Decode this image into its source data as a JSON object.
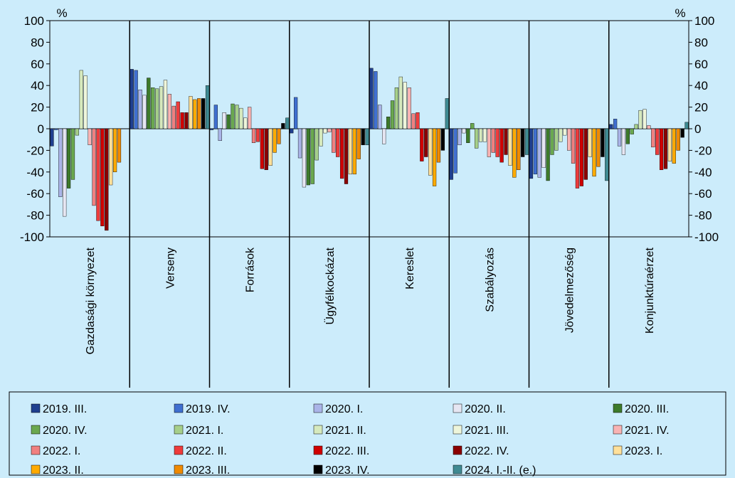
{
  "chart_data": {
    "type": "bar",
    "y_unit_left": "%",
    "y_unit_right": "%",
    "ylim": [
      -100,
      100
    ],
    "yticks": [
      100,
      80,
      60,
      40,
      20,
      0,
      -20,
      -40,
      -60,
      -80,
      -100
    ],
    "grid": false,
    "legend_position": "bottom",
    "categories": [
      "Gazdasági környezet",
      "Verseny",
      "Források",
      "Ügyfélkockázat",
      "Kereslet",
      "Szabályozás",
      "Jövedelmezőség",
      "Konjunktúraérzet"
    ],
    "series": [
      {
        "name": "2019. III.",
        "color": "#1f3f8f",
        "values": [
          -16,
          55,
          -1,
          -4,
          56,
          -47,
          -46,
          4
        ]
      },
      {
        "name": "2019. IV.",
        "color": "#3f6fd0",
        "values": [
          -1,
          54,
          22,
          29,
          53,
          -41,
          -42,
          9
        ]
      },
      {
        "name": "2020. I.",
        "color": "#aab4e8",
        "values": [
          -63,
          36,
          -11,
          -27,
          22,
          -15,
          -45,
          -16
        ]
      },
      {
        "name": "2020. II.",
        "color": "#e6e6f2",
        "values": [
          -81,
          31,
          15,
          -54,
          -14,
          -4,
          -36,
          -24
        ]
      },
      {
        "name": "2020. III.",
        "color": "#3d7a2a",
        "values": [
          -55,
          47,
          13,
          -52,
          11,
          -13,
          -48,
          -14
        ]
      },
      {
        "name": "2020. IV.",
        "color": "#6aa84f",
        "values": [
          -47,
          38,
          23,
          -51,
          26,
          5,
          -24,
          -5
        ]
      },
      {
        "name": "2021. I.",
        "color": "#a6cf8a",
        "values": [
          -6,
          37,
          22,
          -29,
          38,
          -18,
          -20,
          4
        ]
      },
      {
        "name": "2021. II.",
        "color": "#d6e9bd",
        "values": [
          54,
          39,
          19,
          -16,
          48,
          -12,
          -12,
          17
        ]
      },
      {
        "name": "2021. III.",
        "color": "#eef5da",
        "values": [
          49,
          45,
          10,
          -4,
          43,
          -12,
          -6,
          18
        ]
      },
      {
        "name": "2021. IV.",
        "color": "#f8b3b3",
        "values": [
          -15,
          32,
          20,
          -3,
          38,
          -26,
          -20,
          3
        ]
      },
      {
        "name": "2022. I.",
        "color": "#f08080",
        "values": [
          -71,
          21,
          -13,
          -22,
          14,
          -22,
          -32,
          -17
        ]
      },
      {
        "name": "2022. II.",
        "color": "#ee3b3b",
        "values": [
          -85,
          25,
          -12,
          -26,
          15,
          -26,
          -55,
          -24
        ]
      },
      {
        "name": "2022. III.",
        "color": "#d00000",
        "values": [
          -90,
          15,
          -37,
          -46,
          -30,
          -31,
          -53,
          -38
        ]
      },
      {
        "name": "2022. IV.",
        "color": "#8b0000",
        "values": [
          -94,
          15,
          -38,
          -51,
          -26,
          -24,
          -47,
          -37
        ]
      },
      {
        "name": "2023. I.",
        "color": "#ffe09a",
        "values": [
          -52,
          30,
          -34,
          -42,
          -43,
          -34,
          -26,
          -30
        ]
      },
      {
        "name": "2023. II.",
        "color": "#ffab00",
        "values": [
          -40,
          27,
          -22,
          -42,
          -53,
          -45,
          -44,
          -32
        ]
      },
      {
        "name": "2023. III.",
        "color": "#f08a00",
        "values": [
          -31,
          28,
          -14,
          -28,
          -31,
          -38,
          -35,
          -20
        ]
      },
      {
        "name": "2023. IV.",
        "color": "#000000",
        "values": [
          0,
          28,
          5,
          -15,
          -20,
          -26,
          -26,
          -8
        ]
      },
      {
        "name": "2024. I.-II. (e.)",
        "color": "#3f8a92",
        "values": [
          0,
          40,
          10,
          -15,
          28,
          -24,
          -48,
          6
        ]
      }
    ]
  }
}
